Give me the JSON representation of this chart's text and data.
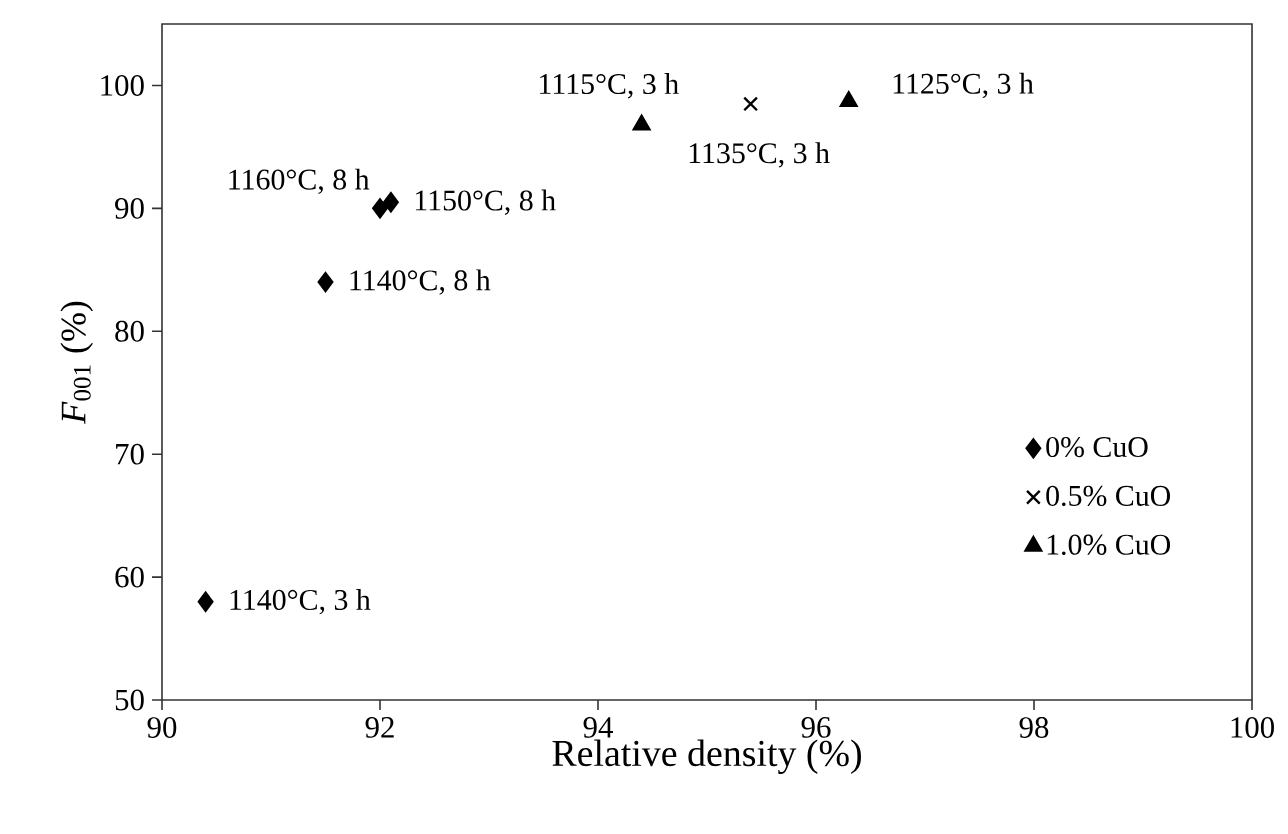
{
  "chart_data": {
    "type": "scatter",
    "xlabel": "Relative density (%)",
    "ylabel": "*F*$_{001}$ (%)",
    "xlim": [
      90,
      100
    ],
    "xticks": [
      90,
      92,
      94,
      96,
      98,
      100
    ],
    "ylim": [
      50,
      105
    ],
    "yticks": [
      50,
      60,
      70,
      80,
      90,
      100
    ],
    "grid": false,
    "legend": "right",
    "series": [
      {
        "name": "0% CuO",
        "color": "#000000",
        "marker": "diamond",
        "x": [
          90.4,
          91.5,
          92.0,
          92.1
        ],
        "values": [
          58,
          84,
          90,
          90.5
        ]
      },
      {
        "name": "0.5% CuO",
        "color": "#000000",
        "marker": "cross",
        "x": [
          95.4
        ],
        "values": [
          98.5
        ]
      },
      {
        "name": "1.0% CuO",
        "color": "#000000",
        "marker": "triangle",
        "x": [
          94.4,
          96.3
        ],
        "values": [
          96.8,
          98.7
        ]
      }
    ],
    "annotations": [
      {
        "text": "1160°C, 8 h",
        "x": 92.0,
        "y": 90
      },
      {
        "text": "1150°C, 8 h",
        "x": 92.1,
        "y": 90.5
      },
      {
        "text": "1140°C, 8 h",
        "x": 91.5,
        "y": 84
      },
      {
        "text": "1140°C, 3 h",
        "x": 90.4,
        "y": 58
      },
      {
        "text": "1115°C, 3 h",
        "x": 94.4,
        "y": 96.8
      },
      {
        "text": "1135°C, 3 h",
        "x": 95.4,
        "y": 98.5
      },
      {
        "text": "1125°C, 3 h",
        "x": 96.3,
        "y": 98.7
      }
    ]
  }
}
